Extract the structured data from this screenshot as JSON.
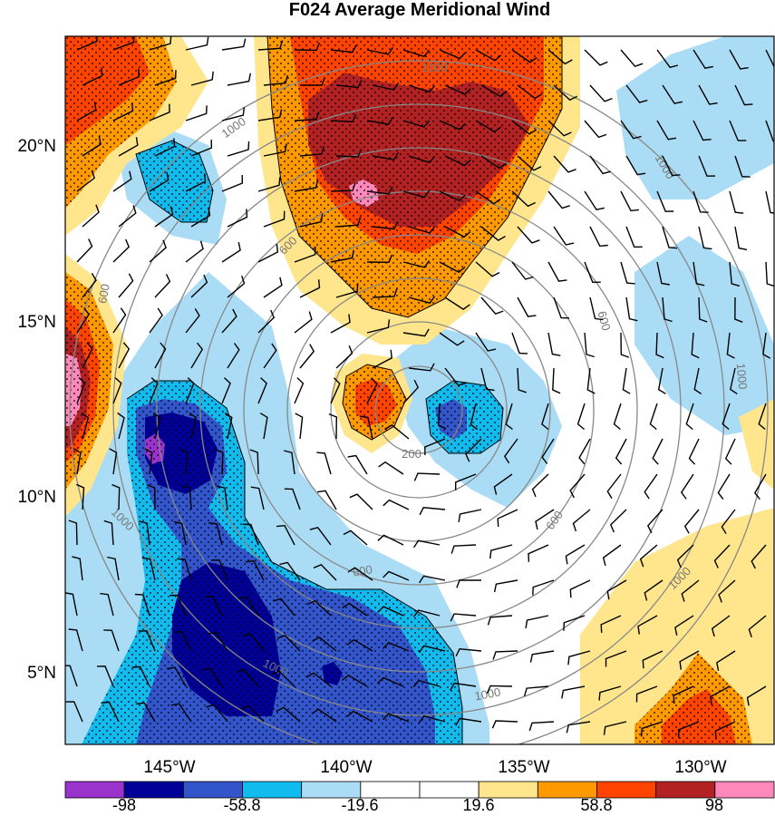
{
  "title": "F024 Average Meridional Wind",
  "lat_labels": [
    "20°N",
    "15°N",
    "10°N",
    "5°N"
  ],
  "lon_labels": [
    "145°W",
    "140°W",
    "135°W",
    "130°W"
  ],
  "colorbar": {
    "labels": [
      "-98",
      "-58.8",
      "-19.6",
      "19.6",
      "58.8",
      "98"
    ],
    "colors": [
      "#9933cc",
      "#000099",
      "#3355cc",
      "#11bbee",
      "#aaddf5",
      "#ffffff",
      "#ffffff",
      "#ffe68c",
      "#ff9900",
      "#ff4400",
      "#b22222",
      "#ff88bb"
    ]
  },
  "range_rings": [
    "200",
    "600",
    "1000"
  ],
  "colors": {
    "ring": "#888888",
    "contour": "#000000",
    "barb": "#000000"
  }
}
